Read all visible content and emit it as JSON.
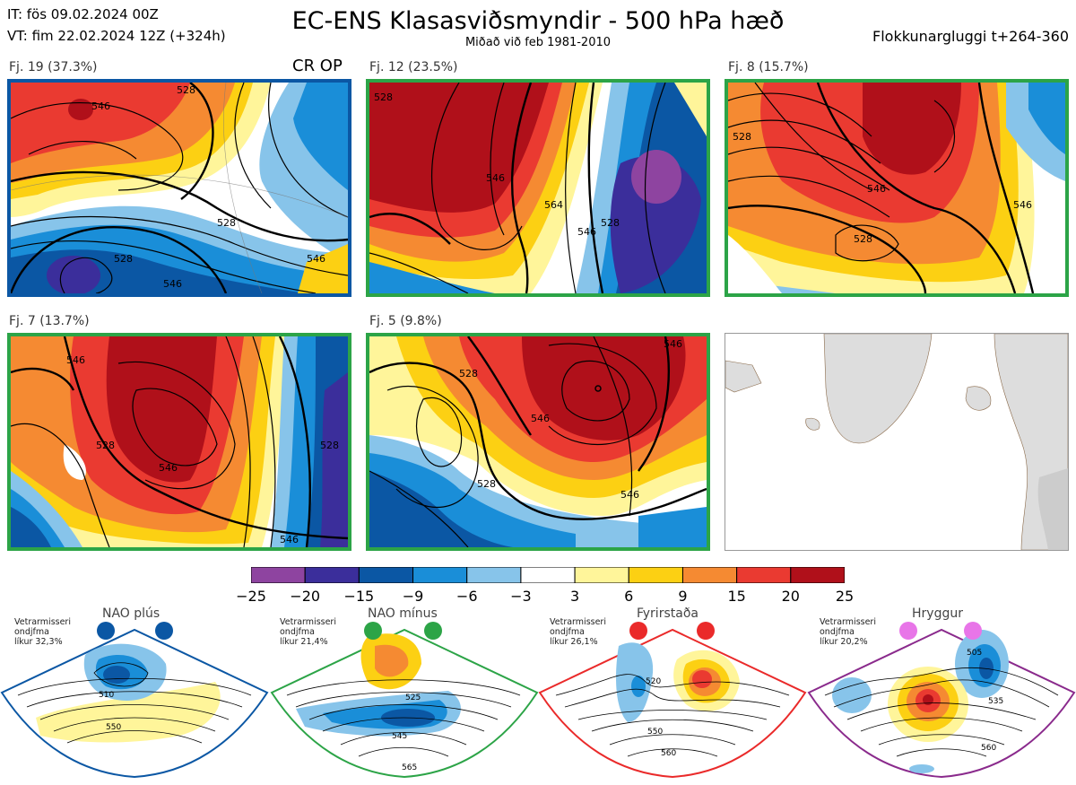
{
  "header": {
    "it_line": "IT: fös 09.02.2024 00Z",
    "vt_line": "VT: fim 22.02.2024 12Z  (+324h)",
    "title": "EC-ENS Klasasviðsmyndir - 500 hPa hæð",
    "subtitle": "Miðað við feb 1981-2010",
    "window": "Flokkunargluggi t+264-360"
  },
  "panels": [
    {
      "label": "Fj. 19 (37.3%)",
      "tag": "CR OP",
      "border": "#0b57a4",
      "contours": [
        "546",
        "528",
        "546",
        "528",
        "546",
        "528"
      ]
    },
    {
      "label": "Fj. 12 (23.5%)",
      "tag": "",
      "border": "#2ca447",
      "contours": [
        "528",
        "546",
        "564",
        "546",
        "528"
      ]
    },
    {
      "label": "Fj. 8 (15.7%)",
      "tag": "",
      "border": "#2ca447",
      "contours": [
        "528",
        "546",
        "528",
        "546"
      ]
    },
    {
      "label": "Fj. 7 (13.7%)",
      "tag": "",
      "border": "#2ca447",
      "contours": [
        "546",
        "528",
        "546",
        "528",
        "546"
      ]
    },
    {
      "label": "Fj. 5 (9.8%)",
      "tag": "",
      "border": "#2ca447",
      "contours": [
        "546",
        "528",
        "546",
        "528",
        "546"
      ]
    }
  ],
  "colorbar": {
    "ticks": [
      "−25",
      "−20",
      "−15",
      "−9",
      "−6",
      "−3",
      "3",
      "6",
      "9",
      "15",
      "20",
      "25"
    ],
    "colors": [
      "#8e44a0",
      "#3b2e9b",
      "#0b57a4",
      "#1a8ed8",
      "#87c4ea",
      "#ffffff",
      "#fff59a",
      "#fcd013",
      "#f58a32",
      "#ea3a31",
      "#b0101a"
    ]
  },
  "regimes": [
    {
      "title": "NAO plús",
      "note_lines": [
        "Vetrarmisseri",
        "ondjfma",
        "líkur 32,3%"
      ],
      "color": "#0b57a4",
      "contours": [
        "510",
        "550"
      ]
    },
    {
      "title": "NAO mínus",
      "note_lines": [
        "Vetrarmisseri",
        "ondjfma",
        "líkur 21,4%"
      ],
      "color": "#2ca447",
      "contours": [
        "525",
        "545",
        "565"
      ]
    },
    {
      "title": "Fyrirstaða",
      "note_lines": [
        "Vetrarmisseri",
        "ondjfma",
        "líkur 26,1%"
      ],
      "color": "#ea2a2a",
      "contours": [
        "520",
        "550",
        "560"
      ]
    },
    {
      "title": "Hryggur",
      "note_lines": [
        "Vetrarmisseri",
        "ondjfma",
        "líkur 20,2%"
      ],
      "color": "#8a2a8c",
      "contours": [
        "505",
        "535",
        "560"
      ]
    }
  ],
  "icons": {
    "dot": "regime-dot-icon"
  }
}
